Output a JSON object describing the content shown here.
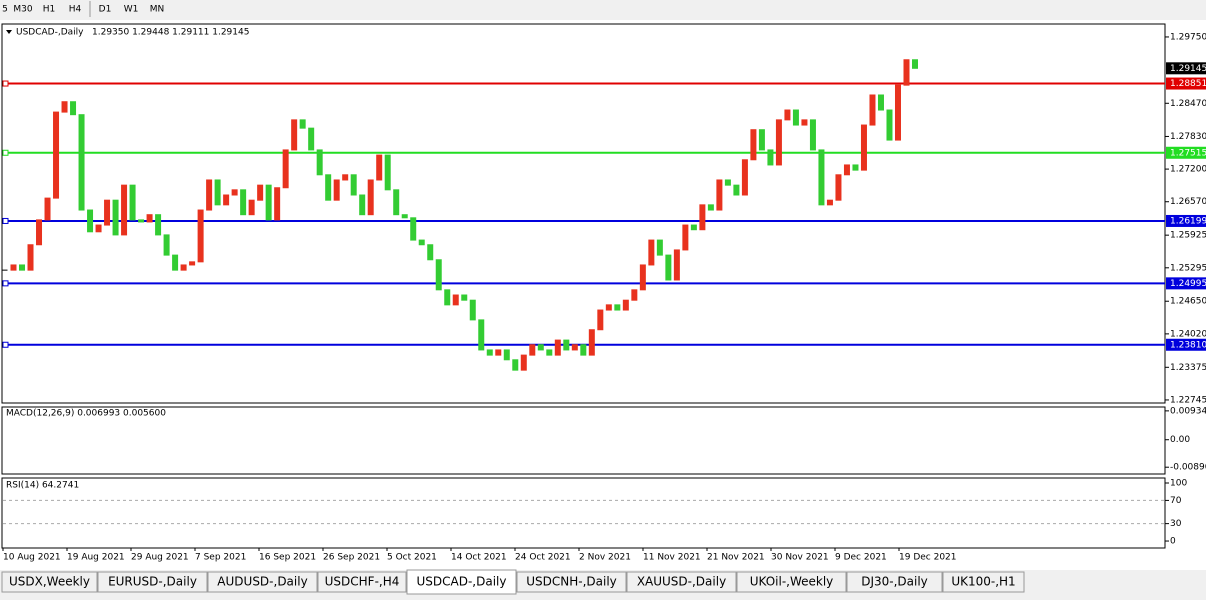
{
  "toolbar": [
    "5",
    "M30",
    "H1",
    "H4",
    "D1",
    "W1",
    "MN"
  ],
  "chart_data": {
    "type": "candlestick",
    "title": "USDCAD-,Daily",
    "ohlc_text": "1.29350 1.29448 1.29111 1.29145",
    "up_color": "#e8321e",
    "down_color": "#33cc33",
    "close": [
      1.2525,
      1.2535,
      1.2525,
      1.2574,
      1.2622,
      1.2664,
      1.283,
      1.285,
      1.2825,
      1.2641,
      1.2599,
      1.2612,
      1.266,
      1.2593,
      1.2689,
      1.2622,
      1.2618,
      1.2632,
      1.2593,
      1.2554,
      1.2525,
      1.2535,
      1.2541,
      1.2641,
      1.2699,
      1.2651,
      1.267,
      1.268,
      1.2632,
      1.266,
      1.2689,
      1.2622,
      1.2684,
      1.2757,
      1.2815,
      1.2799,
      1.2757,
      1.2709,
      1.266,
      1.2699,
      1.2709,
      1.267,
      1.2632,
      1.2699,
      1.2747,
      1.268,
      1.2632,
      1.2626,
      1.2583,
      1.2574,
      1.2545,
      1.2487,
      1.2458,
      1.2477,
      1.2467,
      1.2429,
      1.2371,
      1.2361,
      1.2371,
      1.2352,
      1.2332,
      1.2361,
      1.2381,
      1.2371,
      1.2361,
      1.239,
      1.2371,
      1.2381,
      1.2361,
      1.241,
      1.2448,
      1.2458,
      1.2448,
      1.2467,
      1.2487,
      1.2535,
      1.2583,
      1.2554,
      1.2506,
      1.2564,
      1.2612,
      1.2603,
      1.2651,
      1.2641,
      1.2699,
      1.2689,
      1.267,
      1.2738,
      1.2796,
      1.2757,
      1.2728,
      1.2815,
      1.2834,
      1.2805,
      1.2815,
      1.2757,
      1.2651,
      1.266,
      1.2709,
      1.2728,
      1.2718,
      1.2805,
      1.2863,
      1.2834,
      1.2776,
      1.2882,
      1.2931,
      1.29145
    ],
    "ylim": [
      1.22686,
      1.3
    ],
    "yticks": [
      {
        "value": 1.2975,
        "label": "1.29750"
      },
      {
        "value": 1.2847,
        "label": "1.28470"
      },
      {
        "value": 1.2783,
        "label": "1.27830"
      },
      {
        "value": 1.272,
        "label": "1.27200"
      },
      {
        "value": 1.2657,
        "label": "1.26570"
      },
      {
        "value": 1.25925,
        "label": "1.25925"
      },
      {
        "value": 1.25295,
        "label": "1.25295"
      },
      {
        "value": 1.2465,
        "label": "1.24650"
      },
      {
        "value": 1.2402,
        "label": "1.24020"
      },
      {
        "value": 1.23375,
        "label": "1.23375"
      },
      {
        "value": 1.22745,
        "label": "1.22745"
      }
    ],
    "current_price": {
      "value": 1.29145,
      "label": "1.29145"
    },
    "levels": [
      {
        "value": 1.28851,
        "label": "1.28851",
        "color": "#e00000"
      },
      {
        "value": 1.27515,
        "label": "1.27515",
        "color": "#22dd22"
      },
      {
        "value": 1.26199,
        "label": "1.26199",
        "color": "#0000dd"
      },
      {
        "value": 1.24995,
        "label": "1.24995",
        "color": "#0000dd"
      },
      {
        "value": 1.2381,
        "label": "1.23810",
        "color": "#0000dd"
      }
    ],
    "x_labels": [
      "10 Aug 2021",
      "19 Aug 2021",
      "29 Aug 2021",
      "7 Sep 2021",
      "16 Sep 2021",
      "26 Sep 2021",
      "5 Oct 2021",
      "14 Oct 2021",
      "24 Oct 2021",
      "2 Nov 2021",
      "11 Nov 2021",
      "21 Nov 2021",
      "30 Nov 2021",
      "9 Dec 2021",
      "19 Dec 2021"
    ]
  },
  "macd": {
    "label": "MACD(12,26,9) 0.006993 0.005600",
    "ylim": [
      -0.0111,
      0.0106
    ],
    "yticks": [
      {
        "value": 0.009345,
        "label": "0.009345"
      },
      {
        "value": 0,
        "label": "0.00"
      },
      {
        "value": -0.0089,
        "label": "-0.00890"
      }
    ]
  },
  "rsi": {
    "label": "RSI(14) 64.2741",
    "ylim": [
      -12,
      108.6
    ],
    "yticks": [
      100,
      70,
      30,
      0
    ],
    "dashed": [
      70,
      30
    ]
  },
  "tabs": [
    "USDX,Weekly",
    "EURUSD-,Daily",
    "AUDUSD-,Daily",
    "USDCHF-,H4",
    "USDCAD-,Daily",
    "USDCNH-,Daily",
    "XAUUSD-,Daily",
    "UKOil-,Weekly",
    "DJ30-,Daily",
    "UK100-,H1"
  ],
  "active_tab": 4
}
